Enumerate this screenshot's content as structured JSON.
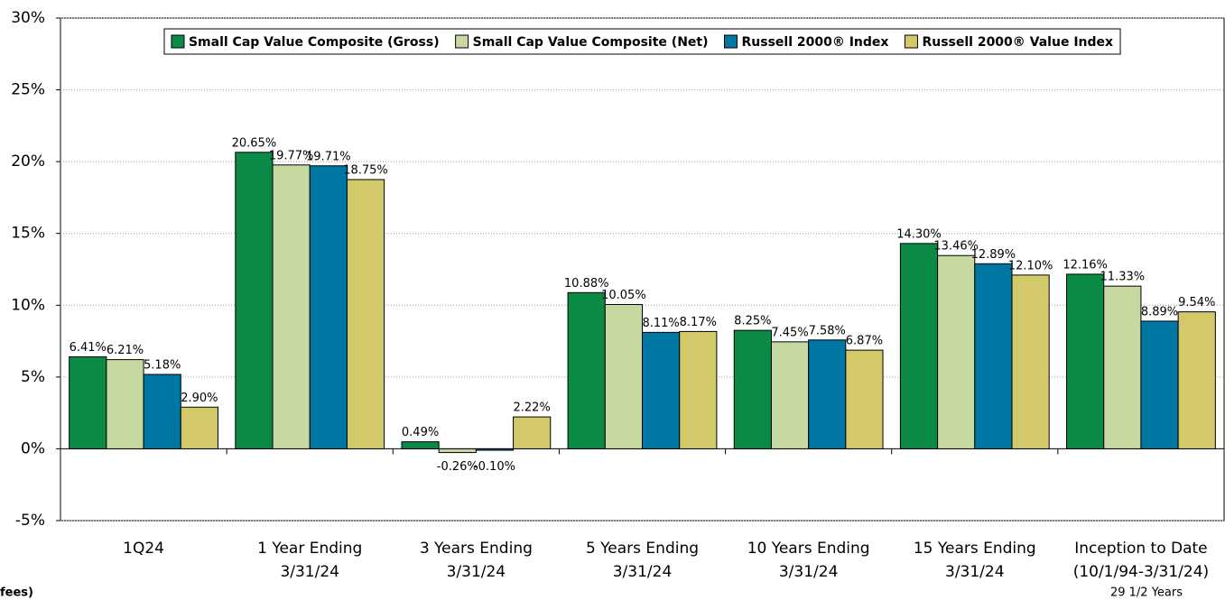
{
  "chart_data": {
    "type": "bar",
    "categories": [
      [
        "1Q24"
      ],
      [
        "1 Year Ending",
        "3/31/24"
      ],
      [
        "3 Years Ending",
        "3/31/24"
      ],
      [
        "5 Years Ending",
        "3/31/24"
      ],
      [
        "10 Years Ending",
        "3/31/24"
      ],
      [
        "15 Years Ending",
        "3/31/24"
      ],
      [
        "Inception to Date",
        "(10/1/94-3/31/24)"
      ]
    ],
    "series": [
      {
        "name": "Small Cap Value Composite (Gross)",
        "color": "#0a8a44",
        "values": [
          6.41,
          20.65,
          0.49,
          10.88,
          8.25,
          14.3,
          12.16
        ],
        "value_labels": [
          "6.41%",
          "20.65%",
          "0.49%",
          "10.88%",
          "8.25%",
          "14.30%",
          "12.16%"
        ]
      },
      {
        "name": "Small Cap Value Composite (Net)",
        "color": "#c5d9a0",
        "values": [
          6.21,
          19.77,
          -0.26,
          10.05,
          7.45,
          13.46,
          11.33
        ],
        "value_labels": [
          "6.21%",
          "19.77%",
          "-0.26%",
          "10.05%",
          "7.45%",
          "13.46%",
          "11.33%"
        ]
      },
      {
        "name": "Russell 2000® Index",
        "color": "#0076a3",
        "values": [
          5.18,
          19.71,
          -0.1,
          8.11,
          7.58,
          12.89,
          8.89
        ],
        "value_labels": [
          "5.18%",
          "19.71%",
          "-0.10%",
          "8.11%",
          "7.58%",
          "12.89%",
          "8.89%"
        ]
      },
      {
        "name": "Russell 2000® Value Index",
        "color": "#d4c96a",
        "values": [
          2.9,
          18.75,
          2.22,
          8.17,
          6.87,
          12.1,
          9.54
        ],
        "value_labels": [
          "2.90%",
          "18.75%",
          "2.22%",
          "8.17%",
          "6.87%",
          "12.10%",
          "9.54%"
        ]
      }
    ],
    "ylim": [
      -5,
      30
    ],
    "yticks": [
      {
        "value": -5,
        "label": "-5%"
      },
      {
        "value": 0,
        "label": "0%"
      },
      {
        "value": 5,
        "label": "5%"
      },
      {
        "value": 10,
        "label": "10%"
      },
      {
        "value": 15,
        "label": "15%"
      },
      {
        "value": 20,
        "label": "20%"
      },
      {
        "value": 25,
        "label": "25%"
      },
      {
        "value": 30,
        "label": "30%"
      }
    ],
    "grid": true,
    "legend": "top",
    "annotations": [
      "29 1/2 Years",
      "fees)"
    ]
  }
}
